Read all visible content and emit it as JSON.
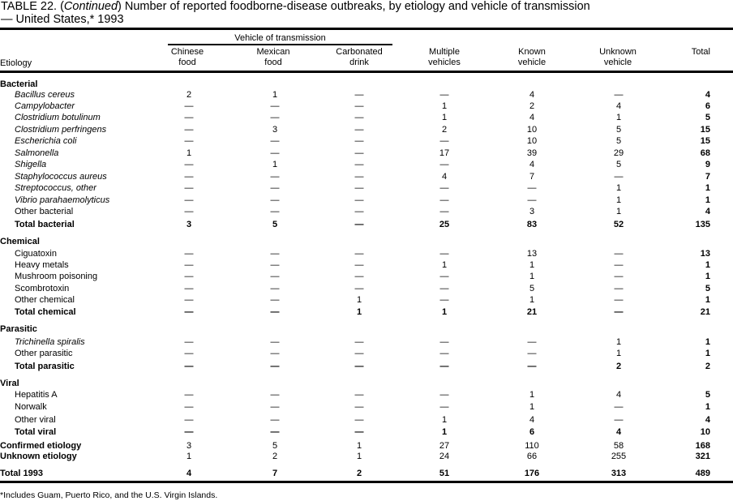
{
  "title": {
    "prefix": "TABLE 22. (",
    "continued": "Continued",
    "text": ") Number of reported foodborne-disease  outbreaks, by etiology  and vehicle of transmission",
    "line2": "— United States,*  1993"
  },
  "header": {
    "group": "Vehicle of transmission",
    "etiology": "Etiology",
    "columns": [
      [
        "Chinese",
        "food"
      ],
      [
        "Mexican",
        "food"
      ],
      [
        "Carbonated",
        "drink"
      ],
      [
        "Multiple",
        "vehicles"
      ],
      [
        "Known",
        "vehicle"
      ],
      [
        "Unknown",
        "vehicle"
      ],
      [
        "",
        "Total"
      ]
    ]
  },
  "rows": [
    {
      "label": "Bacterial",
      "type": "section"
    },
    {
      "label": "Bacillus cereus",
      "type": "item",
      "italic": true,
      "values": [
        "2",
        "1",
        "—",
        "—",
        "4",
        "—",
        "4"
      ]
    },
    {
      "label": "Campylobacter",
      "type": "item",
      "italic": true,
      "values": [
        "—",
        "—",
        "—",
        "1",
        "2",
        "4",
        "6"
      ]
    },
    {
      "label": "Clostridium botulinum",
      "type": "item",
      "italic": true,
      "values": [
        "—",
        "—",
        "—",
        "1",
        "4",
        "1",
        "5"
      ]
    },
    {
      "label": "Clostridium perfringens",
      "type": "item",
      "italic": true,
      "values": [
        "—",
        "3",
        "—",
        "2",
        "10",
        "5",
        "15"
      ]
    },
    {
      "label": "Escherichia coli",
      "type": "item",
      "italic": true,
      "values": [
        "—",
        "—",
        "—",
        "—",
        "10",
        "5",
        "15"
      ]
    },
    {
      "label": "Salmonella",
      "type": "item",
      "italic": true,
      "values": [
        "1",
        "—",
        "—",
        "17",
        "39",
        "29",
        "68"
      ]
    },
    {
      "label": "Shigella",
      "type": "item",
      "italic": true,
      "values": [
        "—",
        "1",
        "—",
        "—",
        "4",
        "5",
        "9"
      ]
    },
    {
      "label": "Staphylococcus aureus",
      "type": "item",
      "italic": true,
      "values": [
        "—",
        "—",
        "—",
        "4",
        "7",
        "—",
        "7"
      ]
    },
    {
      "label": "Streptococcus, other",
      "type": "item",
      "italic": true,
      "values": [
        "—",
        "—",
        "—",
        "—",
        "—",
        "1",
        "1"
      ]
    },
    {
      "label": "Vibrio parahaemolyticus",
      "type": "item",
      "italic": true,
      "values": [
        "—",
        "—",
        "—",
        "—",
        "—",
        "1",
        "1"
      ]
    },
    {
      "label": "Other bacterial",
      "type": "item",
      "values": [
        "—",
        "—",
        "—",
        "—",
        "3",
        "1",
        "4"
      ]
    },
    {
      "label": "Total bacterial",
      "type": "subtotal",
      "values": [
        "3",
        "5",
        "—",
        "25",
        "83",
        "52",
        "135"
      ]
    },
    {
      "label": "Chemical",
      "type": "section"
    },
    {
      "label": "Ciguatoxin",
      "type": "item",
      "values": [
        "—",
        "—",
        "—",
        "—",
        "13",
        "—",
        "13"
      ]
    },
    {
      "label": "Heavy metals",
      "type": "item",
      "values": [
        "—",
        "—",
        "—",
        "1",
        "1",
        "—",
        "1"
      ]
    },
    {
      "label": "Mushroom poisoning",
      "type": "item",
      "values": [
        "—",
        "—",
        "—",
        "—",
        "1",
        "—",
        "1"
      ]
    },
    {
      "label": "Scombrotoxin",
      "type": "item",
      "values": [
        "—",
        "—",
        "—",
        "—",
        "5",
        "—",
        "5"
      ]
    },
    {
      "label": "Other chemical",
      "type": "item",
      "values": [
        "—",
        "—",
        "1",
        "—",
        "1",
        "—",
        "1"
      ]
    },
    {
      "label": "Total chemical",
      "type": "subtotal",
      "values": [
        "—",
        "—",
        "1",
        "1",
        "21",
        "—",
        "21"
      ]
    },
    {
      "label": "Parasitic",
      "type": "section"
    },
    {
      "label": "Trichinella spiralis",
      "type": "item",
      "italic": true,
      "values": [
        "—",
        "—",
        "—",
        "—",
        "—",
        "1",
        "1"
      ]
    },
    {
      "label": "Other parasitic",
      "type": "item",
      "values": [
        "—",
        "—",
        "—",
        "—",
        "—",
        "1",
        "1"
      ]
    },
    {
      "label": "Total parasitic",
      "type": "subtotal",
      "values": [
        "—",
        "—",
        "—",
        "—",
        "—",
        "2",
        "2"
      ]
    },
    {
      "label": "Viral",
      "type": "section"
    },
    {
      "label": "Hepatitis A",
      "type": "item",
      "values": [
        "—",
        "—",
        "—",
        "—",
        "1",
        "4",
        "5"
      ]
    },
    {
      "label": "Norwalk",
      "type": "item",
      "values": [
        "—",
        "—",
        "—",
        "—",
        "1",
        "—",
        "1"
      ]
    },
    {
      "label": "Other viral",
      "type": "item",
      "values": [
        "—",
        "—",
        "—",
        "1",
        "4",
        "—",
        "4"
      ]
    },
    {
      "label": "Total viral",
      "type": "subtotal",
      "values": [
        "—",
        "—",
        "—",
        "1",
        "6",
        "4",
        "10"
      ]
    },
    {
      "label": "Confirmed etiology",
      "type": "summary",
      "values": [
        "3",
        "5",
        "1",
        "27",
        "110",
        "58",
        "168"
      ]
    },
    {
      "label": "Unknown etiology",
      "type": "summary",
      "values": [
        "1",
        "2",
        "1",
        "24",
        "66",
        "255",
        "321"
      ]
    },
    {
      "label": "Total 1993",
      "type": "grandtotal",
      "values": [
        "4",
        "7",
        "2",
        "51",
        "176",
        "313",
        "489"
      ]
    }
  ],
  "footnote": "*Includes Guam, Puerto Rico, and the U.S. Virgin Islands."
}
